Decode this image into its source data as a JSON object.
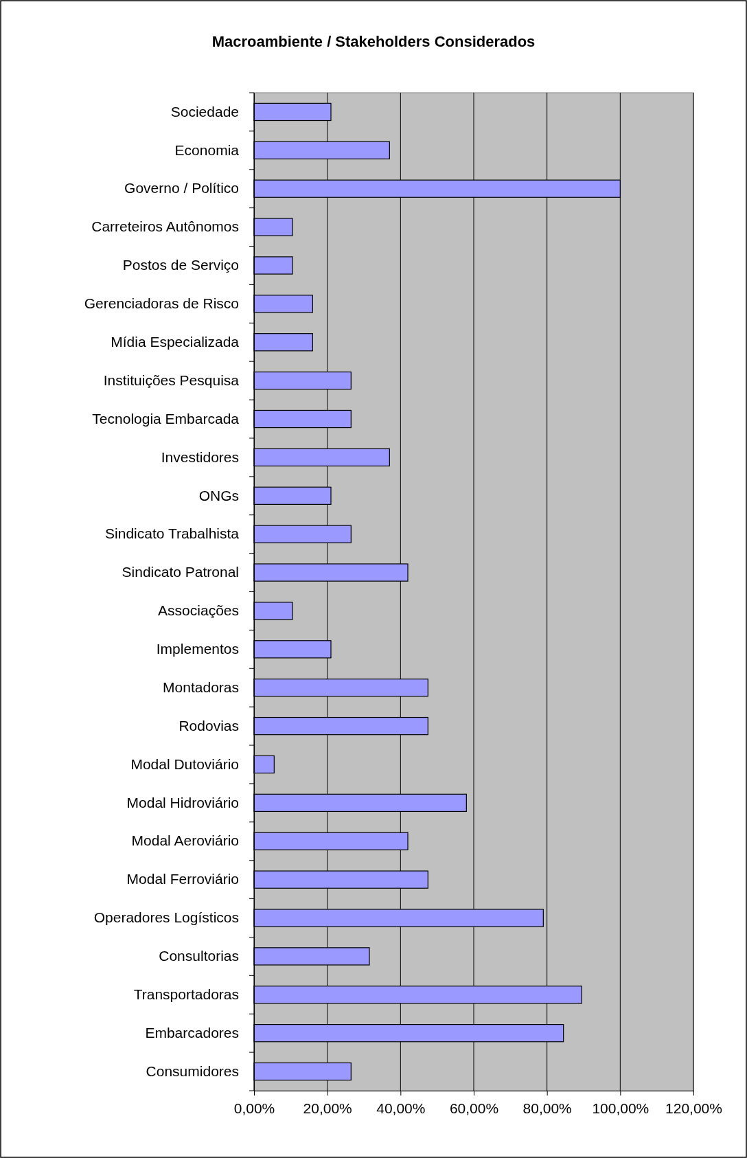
{
  "chart_data": {
    "type": "bar",
    "orientation": "horizontal",
    "title": "Macroambiente / Stakeholders Considerados",
    "categories": [
      "Sociedade",
      "Economia",
      "Governo / Político",
      "Carreteiros Autônomos",
      "Postos de Serviço",
      "Gerenciadoras de Risco",
      "Mídia Especializada",
      "Instituições Pesquisa",
      "Tecnologia Embarcada",
      "Investidores",
      "ONGs",
      "Sindicato Trabalhista",
      "Sindicato Patronal",
      "Associações",
      "Implementos",
      "Montadoras",
      "Rodovias",
      "Modal Dutoviário",
      "Modal Hidroviário",
      "Modal Aeroviário",
      "Modal Ferroviário",
      "Operadores Logísticos",
      "Consultorias",
      "Transportadoras",
      "Embarcadores",
      "Consumidores"
    ],
    "values": [
      21,
      37,
      100,
      10.5,
      10.5,
      16,
      16,
      26.5,
      26.5,
      37,
      21,
      26.5,
      42,
      10.5,
      21,
      47.5,
      47.5,
      5.5,
      58,
      42,
      47.5,
      79,
      31.5,
      89.5,
      84.5,
      26.5
    ],
    "color": "#9999ff",
    "xlim": [
      0,
      120
    ],
    "xticks": [
      {
        "value": 0,
        "label": "0,00%"
      },
      {
        "value": 20,
        "label": "20,00%"
      },
      {
        "value": 40,
        "label": "40,00%"
      },
      {
        "value": 60,
        "label": "60,00%"
      },
      {
        "value": 80,
        "label": "80,00%"
      },
      {
        "value": 100,
        "label": "100,00%"
      },
      {
        "value": 120,
        "label": "120,00%"
      }
    ],
    "grid": "x"
  }
}
